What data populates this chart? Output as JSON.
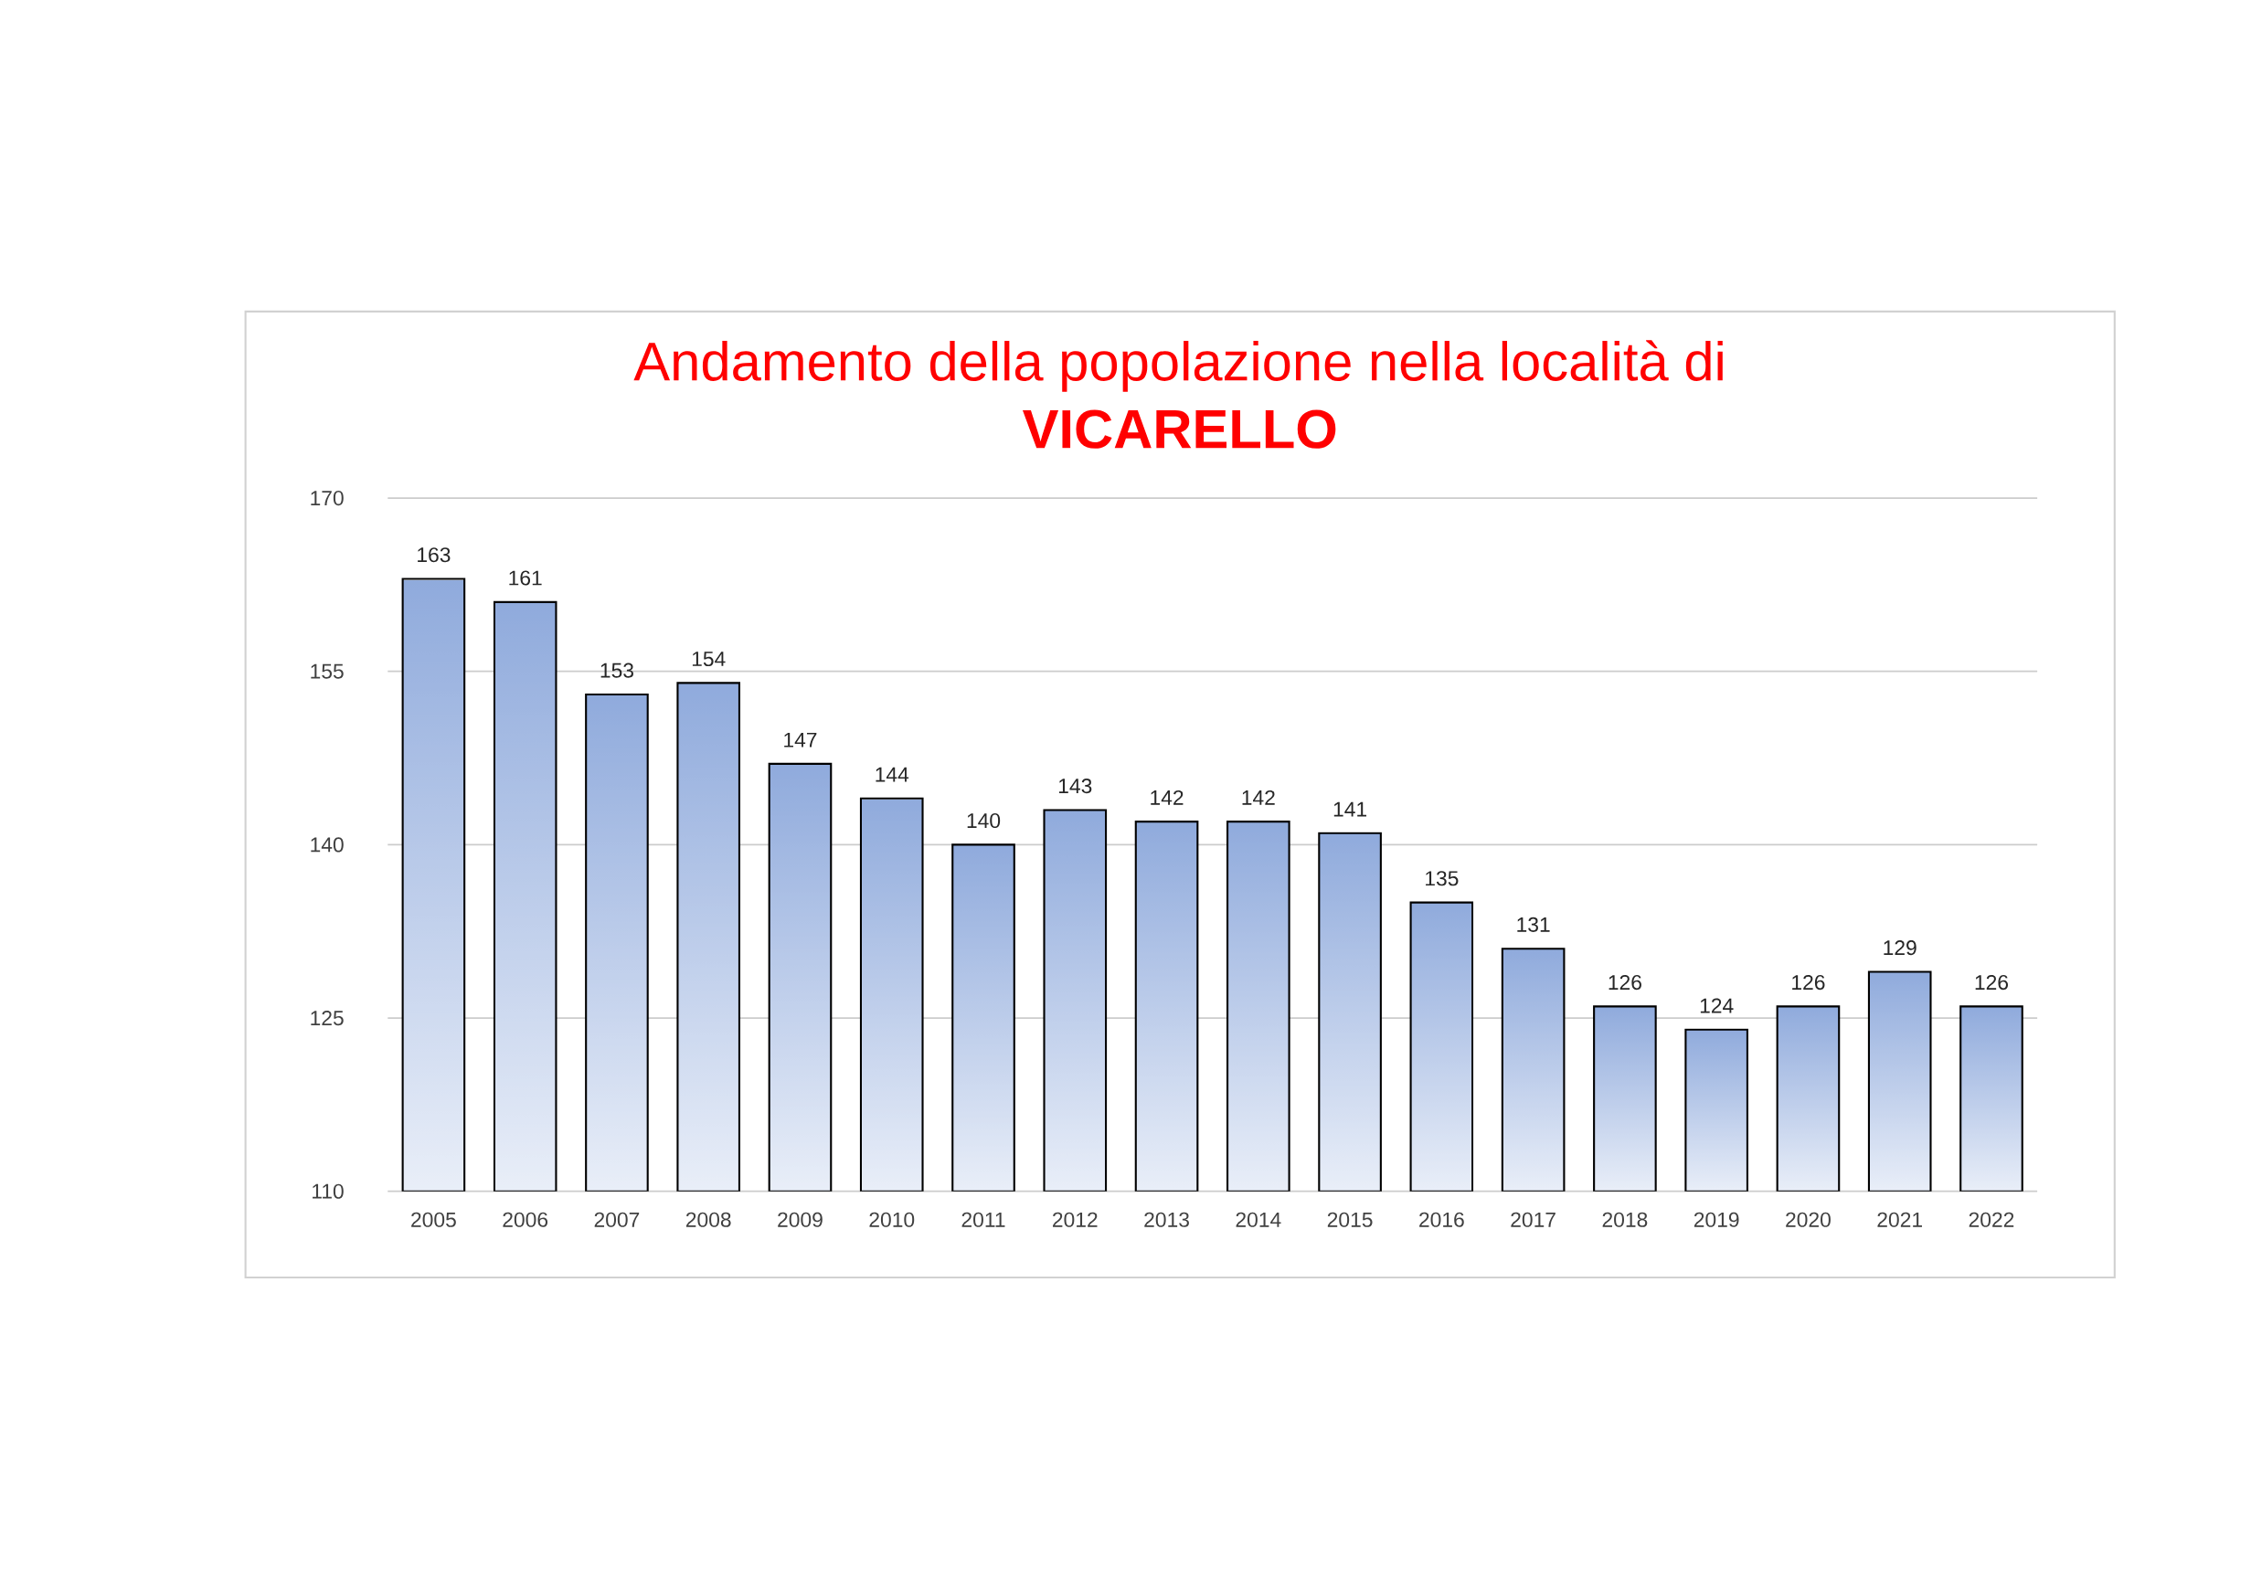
{
  "chart_data": {
    "type": "bar",
    "title": "Andamento della popolazione nella località di",
    "subtitle": "VICARELLO",
    "categories": [
      "2005",
      "2006",
      "2007",
      "2008",
      "2009",
      "2010",
      "2011",
      "2012",
      "2013",
      "2014",
      "2015",
      "2016",
      "2017",
      "2018",
      "2019",
      "2020",
      "2021",
      "2022"
    ],
    "values": [
      163,
      161,
      153,
      154,
      147,
      144,
      140,
      143,
      142,
      142,
      141,
      135,
      131,
      126,
      124,
      126,
      129,
      126
    ],
    "color": "#8faadc",
    "ylim": [
      110,
      170
    ],
    "yticks": [
      110,
      125,
      140,
      155,
      170
    ],
    "grid": "y",
    "data_labels": true
  }
}
